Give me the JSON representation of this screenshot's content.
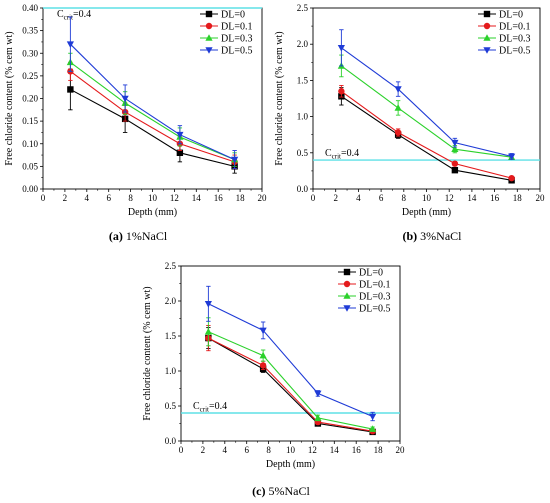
{
  "chart_data": [
    {
      "type": "line",
      "caption_letter": "(a)",
      "caption_text": "1%NaCl",
      "xlabel": "Depth (mm)",
      "ylabel": "Free chloride content (% cem wt)",
      "xlim": [
        0,
        20
      ],
      "ylim": [
        0,
        0.4
      ],
      "xticks": [
        "0",
        "2",
        "4",
        "6",
        "8",
        "10",
        "12",
        "14",
        "16",
        "18",
        "20"
      ],
      "yticks": [
        "0.00",
        "0.05",
        "0.10",
        "0.15",
        "0.20",
        "0.25",
        "0.30",
        "0.35",
        "0.40"
      ],
      "legend_position": "top-right",
      "threshold": {
        "base": "C",
        "sub": "crit",
        "suffix": "=0.4",
        "value": 0.4,
        "color": "#5ee1e6"
      },
      "x": [
        2.5,
        7.5,
        12.5,
        17.5
      ],
      "series": [
        {
          "name": "DL=0",
          "color": "#000000",
          "marker": "square",
          "values": [
            0.22,
            0.155,
            0.08,
            0.05
          ],
          "errors": [
            0.045,
            0.03,
            0.02,
            0.015
          ]
        },
        {
          "name": "DL=0.1",
          "color": "#e41a1c",
          "marker": "circle",
          "values": [
            0.26,
            0.17,
            0.1,
            0.06
          ],
          "errors": [
            0.02,
            0.02,
            0.015,
            0.015
          ]
        },
        {
          "name": "DL=0.3",
          "color": "#2bd12b",
          "marker": "triangle",
          "values": [
            0.28,
            0.19,
            0.115,
            0.065
          ],
          "errors": [
            0.02,
            0.025,
            0.02,
            0.015
          ]
        },
        {
          "name": "DL=0.5",
          "color": "#1f3bd6",
          "marker": "tri-down",
          "values": [
            0.32,
            0.2,
            0.12,
            0.065
          ],
          "errors": [
            0.06,
            0.03,
            0.02,
            0.02
          ]
        }
      ]
    },
    {
      "type": "line",
      "caption_letter": "(b)",
      "caption_text": "3%NaCl",
      "xlabel": "Depth (mm)",
      "ylabel": "Free chloride content (% cem wt)",
      "xlim": [
        0,
        20
      ],
      "ylim": [
        0,
        2.5
      ],
      "xticks": [
        "0",
        "2",
        "4",
        "6",
        "8",
        "10",
        "12",
        "14",
        "16",
        "18",
        "20"
      ],
      "yticks": [
        "0.0",
        "0.5",
        "1.0",
        "1.5",
        "2.0",
        "2.5"
      ],
      "legend_position": "top-right",
      "threshold": {
        "base": "C",
        "sub": "crit",
        "suffix": "=0.4",
        "value": 0.4,
        "color": "#5ee1e6"
      },
      "x": [
        2.5,
        7.5,
        12.5,
        17.5
      ],
      "series": [
        {
          "name": "DL=0",
          "color": "#000000",
          "marker": "square",
          "values": [
            1.28,
            0.75,
            0.26,
            0.12
          ],
          "errors": [
            0.12,
            0.05,
            0.03,
            0.02
          ]
        },
        {
          "name": "DL=0.1",
          "color": "#e41a1c",
          "marker": "circle",
          "values": [
            1.35,
            0.78,
            0.35,
            0.15
          ],
          "errors": [
            0.08,
            0.05,
            0.03,
            0.02
          ]
        },
        {
          "name": "DL=0.3",
          "color": "#2bd12b",
          "marker": "triangle",
          "values": [
            1.7,
            1.12,
            0.55,
            0.44
          ],
          "errors": [
            0.15,
            0.1,
            0.05,
            0.03
          ]
        },
        {
          "name": "DL=0.5",
          "color": "#1f3bd6",
          "marker": "tri-down",
          "values": [
            1.95,
            1.38,
            0.64,
            0.45
          ],
          "errors": [
            0.25,
            0.1,
            0.06,
            0.04
          ]
        }
      ]
    },
    {
      "type": "line",
      "caption_letter": "(c)",
      "caption_text": "5%NaCl",
      "xlabel": "Depth (mm)",
      "ylabel": "Free chloride content (% cem wt)",
      "xlim": [
        0,
        20
      ],
      "ylim": [
        0,
        2.5
      ],
      "xticks": [
        "0",
        "2",
        "4",
        "6",
        "8",
        "10",
        "12",
        "14",
        "16",
        "18",
        "20"
      ],
      "yticks": [
        "0.0",
        "0.5",
        "1.0",
        "1.5",
        "2.0",
        "2.5"
      ],
      "legend_position": "top-right",
      "threshold": {
        "base": "C",
        "sub": "crit",
        "suffix": "=0.4",
        "value": 0.4,
        "color": "#5ee1e6"
      },
      "x": [
        2.5,
        7.5,
        12.5,
        17.5
      ],
      "series": [
        {
          "name": "DL=0",
          "color": "#000000",
          "marker": "square",
          "values": [
            1.47,
            1.03,
            0.25,
            0.13
          ],
          "errors": [
            0.15,
            0.05,
            0.03,
            0.02
          ]
        },
        {
          "name": "DL=0.1",
          "color": "#e41a1c",
          "marker": "circle",
          "values": [
            1.47,
            1.08,
            0.27,
            0.14
          ],
          "errors": [
            0.18,
            0.06,
            0.03,
            0.02
          ]
        },
        {
          "name": "DL=0.3",
          "color": "#2bd12b",
          "marker": "triangle",
          "values": [
            1.56,
            1.22,
            0.33,
            0.17
          ],
          "errors": [
            0.2,
            0.08,
            0.04,
            0.03
          ]
        },
        {
          "name": "DL=0.5",
          "color": "#1f3bd6",
          "marker": "tri-down",
          "values": [
            1.96,
            1.58,
            0.68,
            0.35
          ],
          "errors": [
            0.25,
            0.12,
            0.04,
            0.06
          ]
        }
      ]
    }
  ]
}
